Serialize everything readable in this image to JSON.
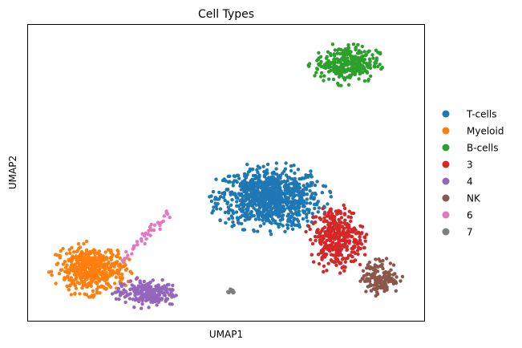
{
  "chart_data": {
    "type": "scatter",
    "title": "Cell Types",
    "xlabel": "UMAP1",
    "ylabel": "UMAP2",
    "xlim": [
      0,
      10
    ],
    "ylim": [
      0,
      7.5
    ],
    "grid": false,
    "ticks": "hidden",
    "legend": "right",
    "series": [
      {
        "name": "T-cells",
        "color": "#1f77b4",
        "count": 900,
        "clusters": [
          {
            "center": [
              6.1,
              3.1
            ],
            "spread": [
              1.55,
              0.9
            ],
            "count": 900
          }
        ]
      },
      {
        "name": "Myeloid",
        "color": "#ff7f0e",
        "count": 450,
        "clusters": [
          {
            "center": [
              1.6,
              1.3
            ],
            "spread": [
              1.05,
              0.7
            ],
            "count": 450
          }
        ]
      },
      {
        "name": "B-cells",
        "color": "#2ca02c",
        "count": 300,
        "clusters": [
          {
            "center": [
              8.05,
              6.5
            ],
            "spread": [
              0.95,
              0.55
            ],
            "count": 300
          }
        ]
      },
      {
        "name": "3",
        "color": "#d62728",
        "count": 350,
        "clusters": [
          {
            "center": [
              7.8,
              2.1
            ],
            "spread": [
              0.8,
              0.95
            ],
            "count": 350
          }
        ]
      },
      {
        "name": "4",
        "color": "#9467bd",
        "count": 220,
        "clusters": [
          {
            "center": [
              3.0,
              0.7
            ],
            "spread": [
              0.9,
              0.4
            ],
            "count": 220
          }
        ]
      },
      {
        "name": "NK",
        "color": "#8c564b",
        "count": 150,
        "clusters": [
          {
            "center": [
              8.9,
              1.1
            ],
            "spread": [
              0.55,
              0.5
            ],
            "count": 150
          }
        ]
      },
      {
        "name": "6",
        "color": "#e377c2",
        "count": 40,
        "arc": {
          "from": [
            2.4,
            1.5
          ],
          "to": [
            3.6,
            2.7
          ],
          "count": 40
        }
      },
      {
        "name": "7",
        "color": "#7f7f7f",
        "count": 12,
        "clusters": [
          {
            "center": [
              5.1,
              0.75
            ],
            "spread": [
              0.16,
              0.08
            ],
            "count": 12
          }
        ]
      }
    ]
  }
}
